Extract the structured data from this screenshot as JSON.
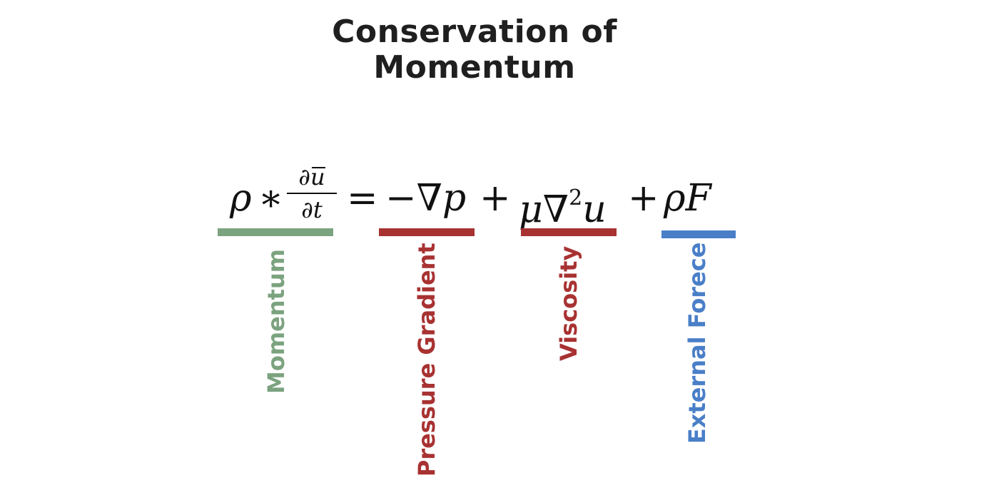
{
  "title": {
    "line1": "Conservation of",
    "line2": "Momentum"
  },
  "equation": {
    "rho": "ρ",
    "star": "∗",
    "frac_num_partial": "∂",
    "frac_num_var": "u",
    "frac_den": "∂t",
    "equals": "=",
    "pressure_term": "−∇p",
    "plus1": "+",
    "mu": "μ",
    "nabla": "∇",
    "exponent": "2",
    "u": "u",
    "plus2": "+",
    "rho2": "ρ",
    "force": "F"
  },
  "terms": [
    {
      "label": "Momentum",
      "color": "#7ba37f"
    },
    {
      "label": "Pressure Gradient",
      "color": "#a83232"
    },
    {
      "label": "Viscosity",
      "color": "#a83232"
    },
    {
      "label": "External Forece",
      "color": "#4a7fc8"
    }
  ]
}
